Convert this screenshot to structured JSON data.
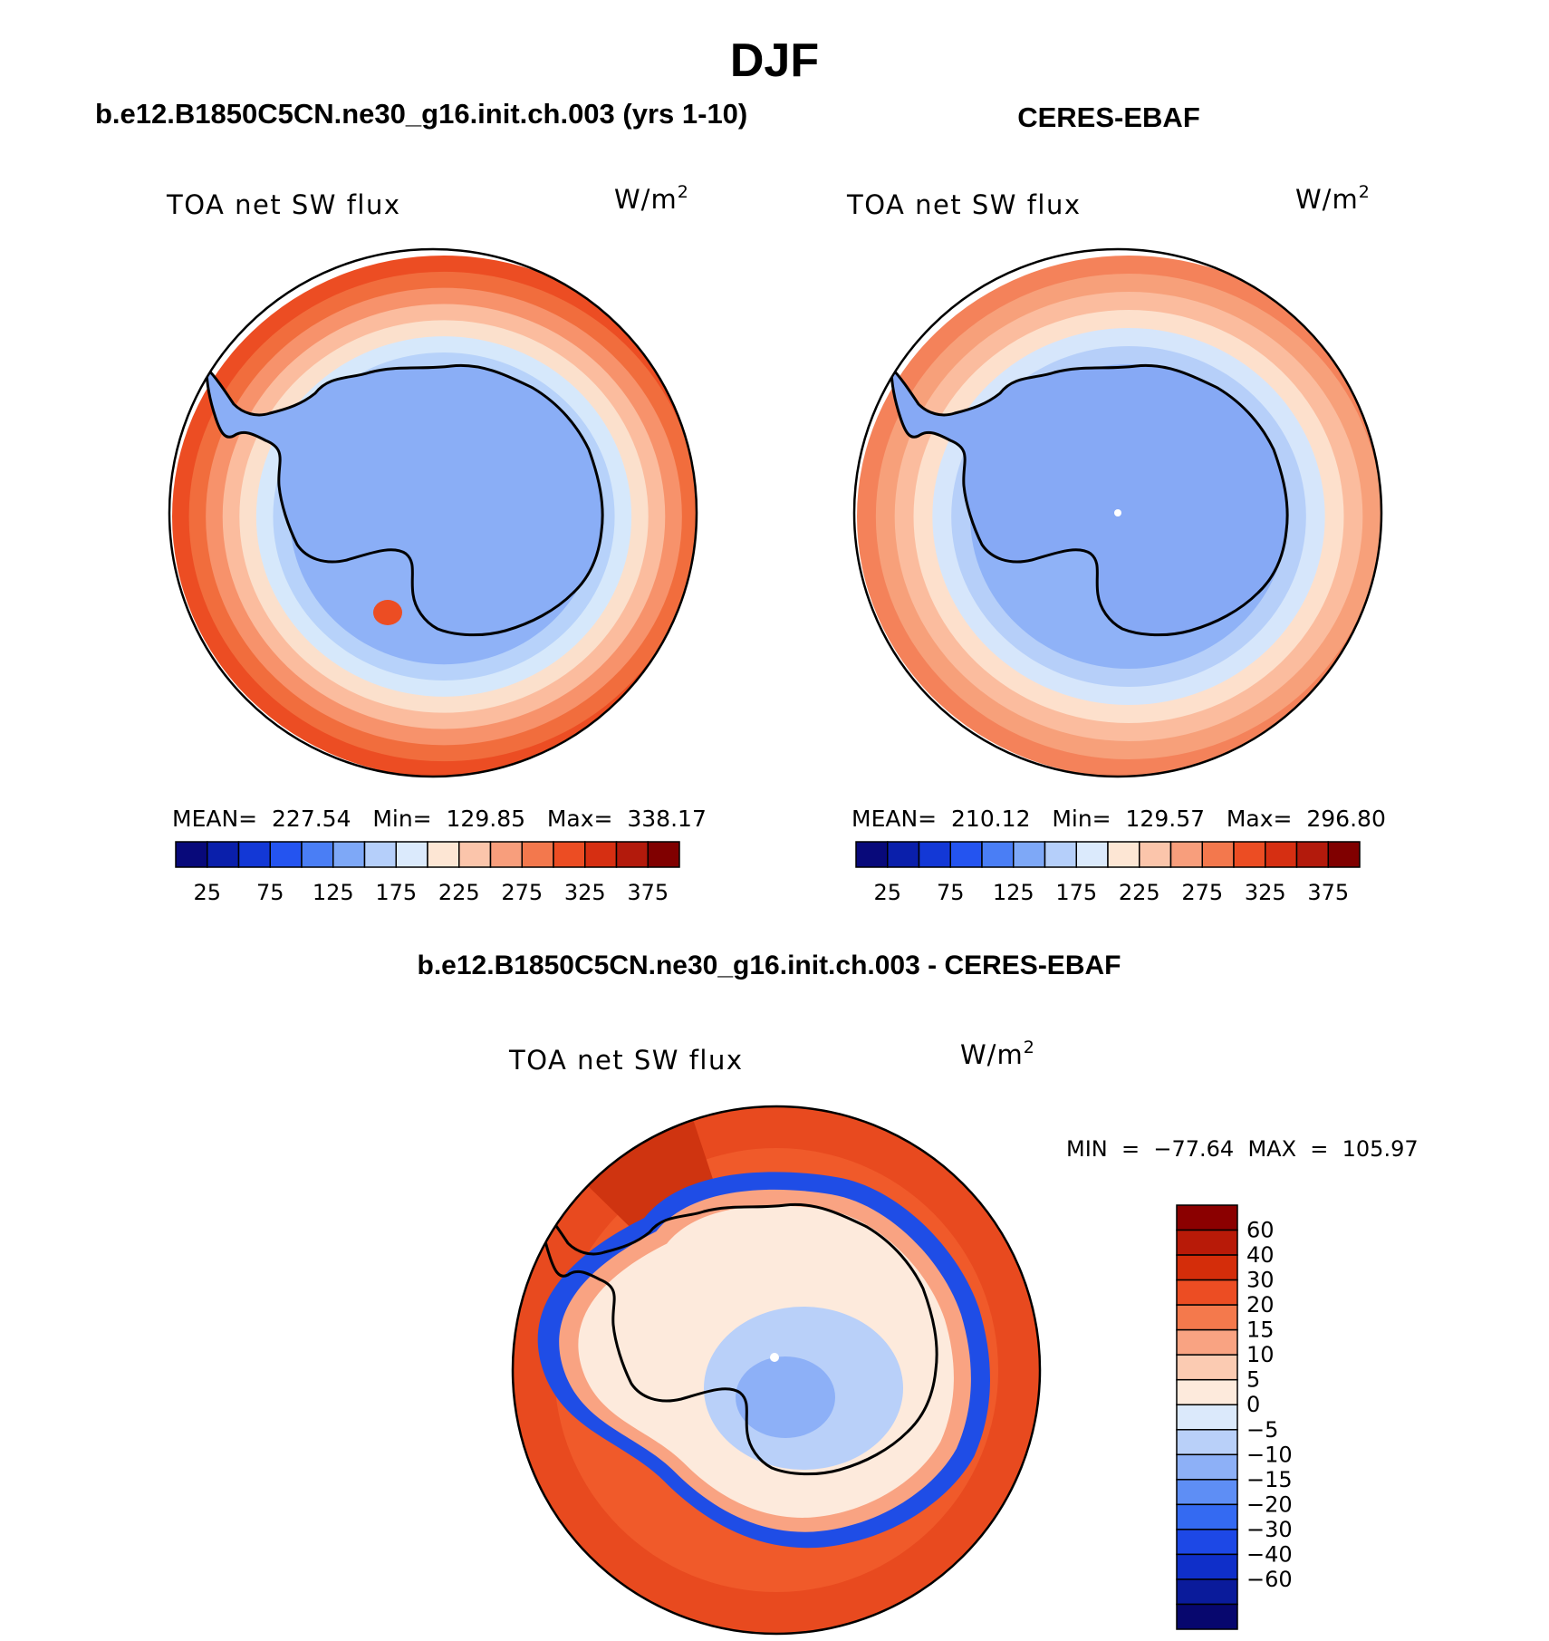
{
  "season": "DJF",
  "panels": [
    {
      "id": "model",
      "title": "b.e12.B1850C5CN.ne30_g16.init.ch.003 (yrs 1-10)",
      "variable": "TOA net SW flux",
      "units_base": "W/m",
      "units_exp": "2",
      "stats": "MEAN=  227.54   Min=  129.85   Max=  338.17",
      "rings": [
        "#ec4d23",
        "#f16d3d",
        "#f7926b",
        "#fbbc9e",
        "#fbe0cc",
        "#d6e8fb",
        "#b7d2fa",
        "#8fb2f7"
      ]
    },
    {
      "id": "obs",
      "title": "CERES-EBAF",
      "variable": "TOA net SW flux",
      "units_base": "W/m",
      "units_exp": "2",
      "stats": "MEAN=  210.12   Min=  129.57   Max=  296.80",
      "rings": [
        "#f4825a",
        "#f7a07a",
        "#fbbc9e",
        "#fde0cc",
        "#d6e6fb",
        "#b6cff9",
        "#8fb2f7"
      ]
    }
  ],
  "hbar": {
    "colors": [
      "#08097a",
      "#0a1fab",
      "#1338d6",
      "#2454f0",
      "#4a7ef5",
      "#7ea8f7",
      "#b5cffa",
      "#dbeafc",
      "#fde6d4",
      "#fbc5ab",
      "#f89e7c",
      "#f3784d",
      "#ec4d23",
      "#d62f12",
      "#b31a0c",
      "#800000"
    ],
    "labels": [
      "25",
      "75",
      "125",
      "175",
      "225",
      "275",
      "325",
      "375"
    ]
  },
  "diff": {
    "title": "b.e12.B1850C5CN.ne30_g16.init.ch.003 - CERES-EBAF",
    "variable": "TOA net SW flux",
    "units_base": "W/m",
    "units_exp": "2",
    "stats": "MIN  =  −77.64  MAX  =  105.97",
    "colors": [
      "#8b0000",
      "#b81a08",
      "#d42d0a",
      "#ec4d23",
      "#f4794c",
      "#f9a382",
      "#fbcbb2",
      "#fdeadc",
      "#dbe9fb",
      "#b9d0f9",
      "#8db0f7",
      "#5e8ef5",
      "#346af2",
      "#1d48e6",
      "#0f2fc9",
      "#0a1b9b",
      "#07076e"
    ],
    "labels": [
      "60",
      "40",
      "30",
      "20",
      "15",
      "10",
      "5",
      "0",
      "−5",
      "−10",
      "−15",
      "−20",
      "−30",
      "−40",
      "−60"
    ]
  }
}
